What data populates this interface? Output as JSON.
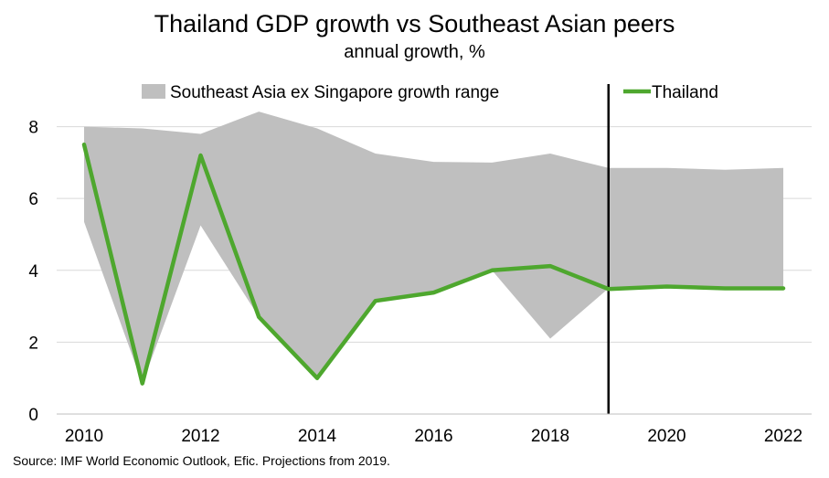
{
  "chart_data": {
    "type": "line",
    "title": "Thailand GDP growth vs Southeast Asian peers",
    "subtitle": "annual growth, %",
    "xlabel": "",
    "ylabel": "",
    "x": [
      2010,
      2011,
      2012,
      2013,
      2014,
      2015,
      2016,
      2017,
      2018,
      2019,
      2020,
      2021,
      2022
    ],
    "xlim": [
      2010,
      2022
    ],
    "ylim": [
      0,
      8.6
    ],
    "x_ticks": [
      "2010",
      "2012",
      "2014",
      "2016",
      "2018",
      "2020",
      "2022"
    ],
    "y_ticks": [
      "0",
      "2",
      "4",
      "6",
      "8"
    ],
    "grid": true,
    "legend_position": "top",
    "projection_start": 2019,
    "range_series": {
      "name": "Southeast Asia ex Singapore growth range",
      "color": "#bfbfbf",
      "upper": [
        8.0,
        7.95,
        7.8,
        8.42,
        7.95,
        7.25,
        7.02,
        7.0,
        7.25,
        6.85,
        6.85,
        6.8,
        6.85
      ],
      "lower": [
        5.35,
        0.85,
        5.25,
        2.7,
        1.0,
        3.15,
        3.38,
        4.0,
        2.1,
        3.5,
        3.5,
        3.5,
        3.5
      ]
    },
    "series": [
      {
        "name": "Thailand",
        "color": "#4ea72e",
        "values": [
          7.5,
          0.85,
          7.2,
          2.7,
          1.0,
          3.15,
          3.38,
          4.0,
          4.12,
          3.48,
          3.55,
          3.5,
          3.5
        ]
      }
    ]
  },
  "source_note": "Source: IMF World Economic Outlook, Efic. Projections from 2019."
}
